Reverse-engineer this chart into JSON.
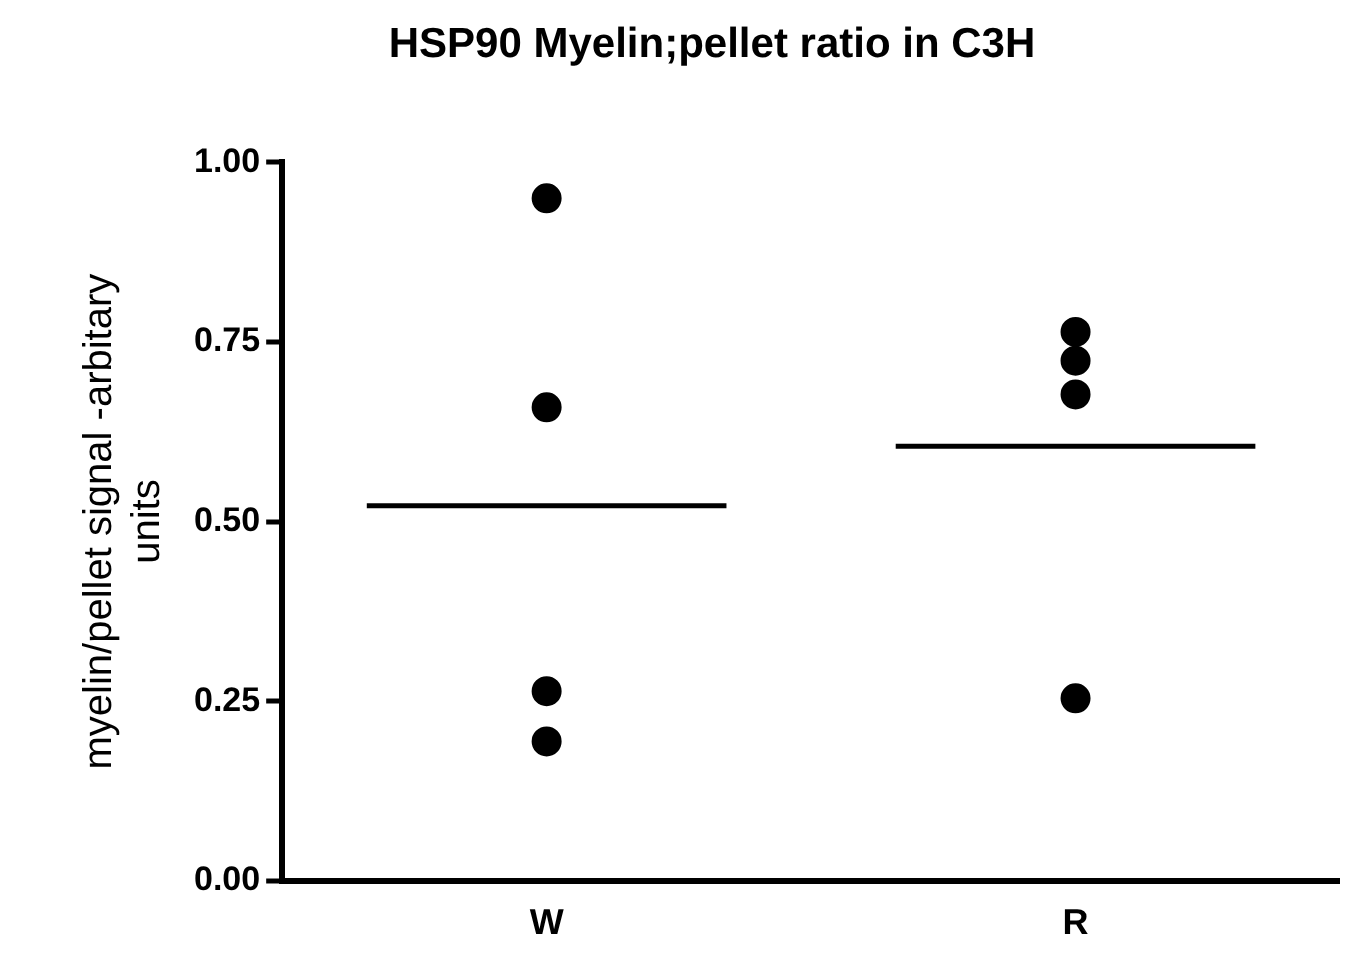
{
  "chart_data": {
    "type": "scatter",
    "title": "HSP90 Myelin;pellet ratio in C3H",
    "ylabel": "myelin/pellet signal -arbitary units",
    "categories": [
      "W",
      "R"
    ],
    "series": [
      {
        "color": "#000000",
        "marker": "circle",
        "x": [
          "W",
          "W",
          "W",
          "W",
          "R",
          "R",
          "R",
          "R"
        ],
        "values": [
          0.95,
          0.659,
          0.264,
          0.194,
          0.764,
          0.724,
          0.677,
          0.254
        ]
      }
    ],
    "ref_lines": [
      {
        "axis": "y",
        "value": 0.522,
        "color": "#000000"
      },
      {
        "axis": "y",
        "value": 0.605,
        "color": "#000000"
      }
    ],
    "ylim": [
      0,
      1
    ],
    "yticks": [
      {
        "value": 0,
        "label": "0.00"
      },
      {
        "value": 0.25,
        "label": "0.25"
      },
      {
        "value": 0.5,
        "label": "0.50"
      },
      {
        "value": 0.75,
        "label": "0.75"
      },
      {
        "value": 1,
        "label": "1.00"
      }
    ],
    "grid": false,
    "legend": false
  }
}
